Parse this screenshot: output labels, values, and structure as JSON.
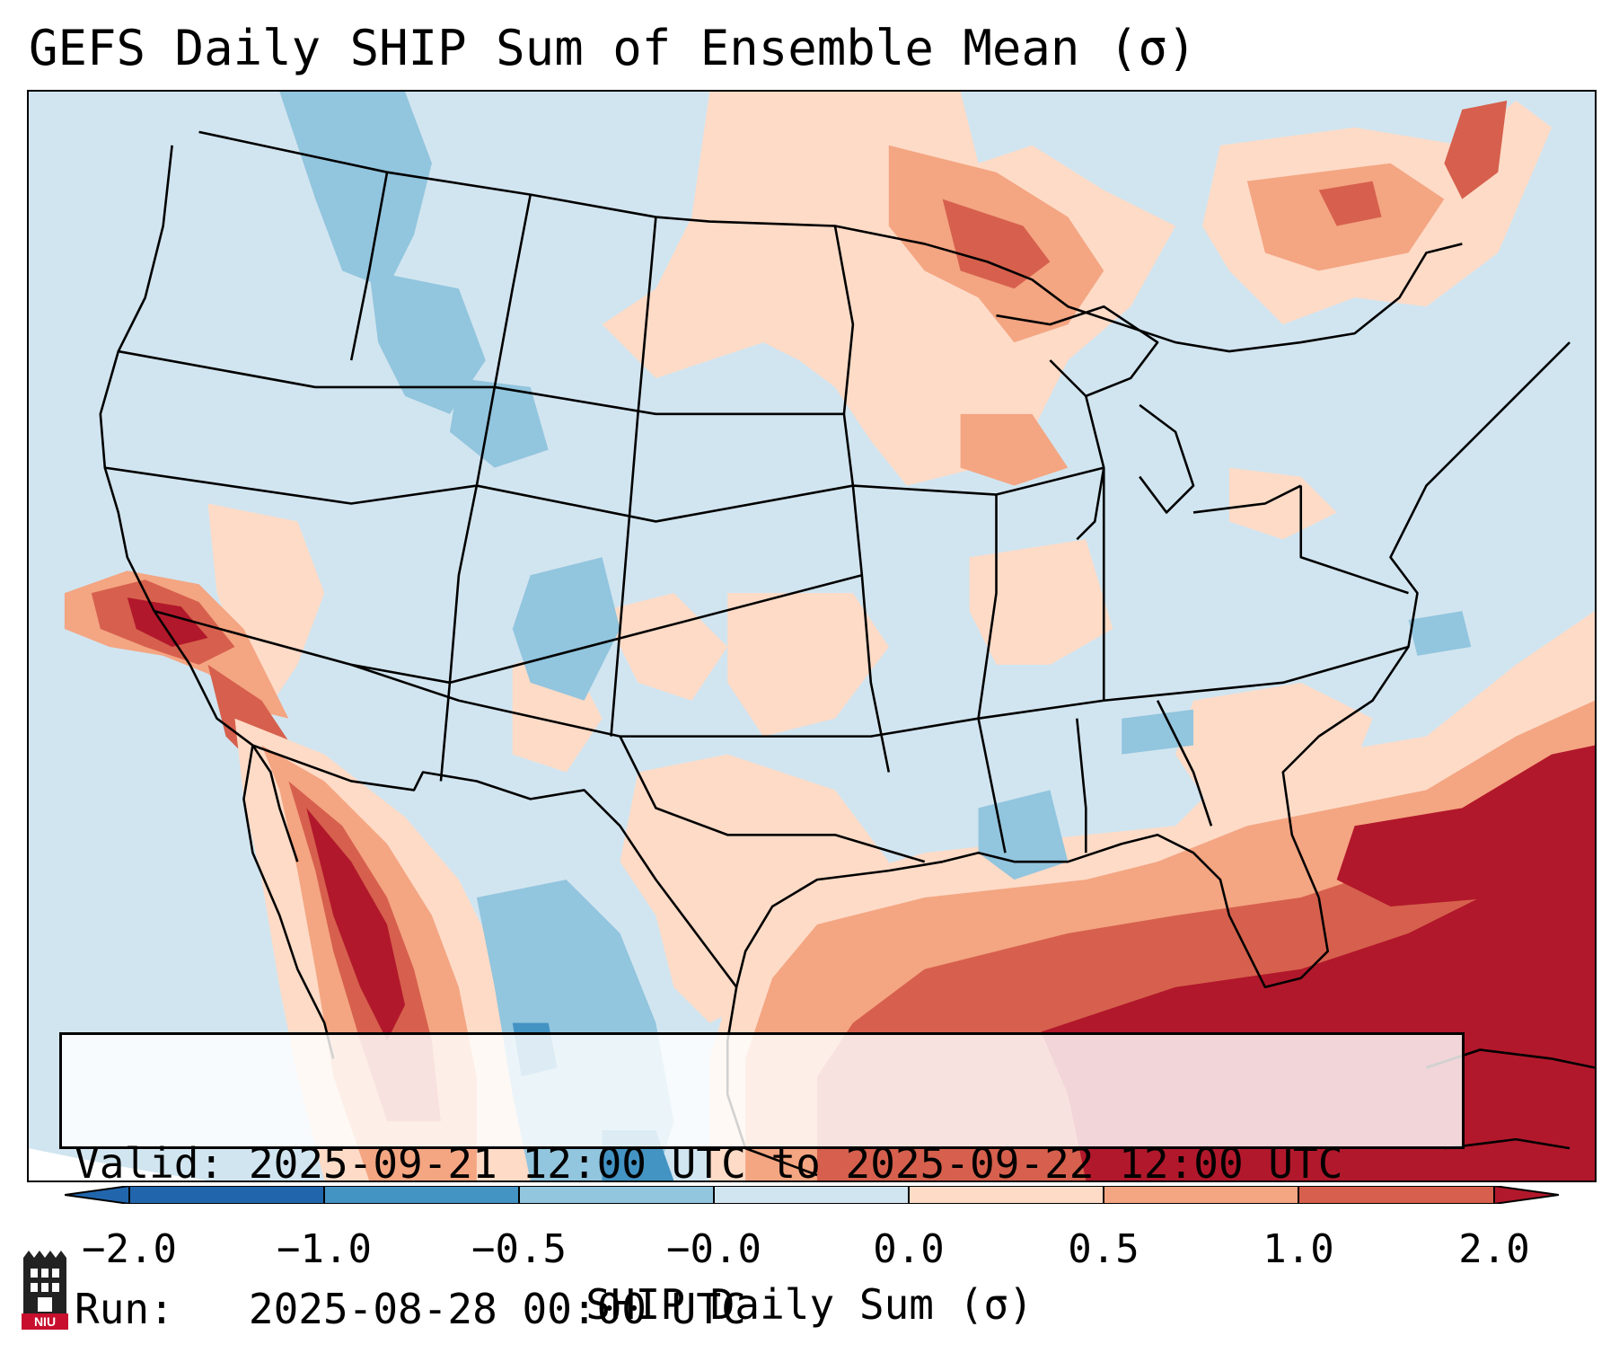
{
  "title": "GEFS Daily SHIP Sum of Ensemble Mean (σ)",
  "info": {
    "valid_label": "Valid:",
    "valid_value": "2025-09-21 12:00 UTC to 2025-09-22 12:00 UTC",
    "run_label": "Run:",
    "run_value": "2025-08-28 00:00 UTC"
  },
  "colorbar": {
    "label": "SHIP Daily Sum (σ)",
    "ticks": [
      "−2.0",
      "−1.0",
      "−0.5",
      "−0.0",
      "0.0",
      "0.5",
      "1.0",
      "2.0"
    ],
    "colors": [
      "#2166ac",
      "#4393c3",
      "#92c5de",
      "#d1e5f0",
      "#fddbc7",
      "#f4a582",
      "#d6604d",
      "#b2182b"
    ]
  },
  "logo": {
    "text": "NIU"
  },
  "map": {
    "region": "Contiguous United States",
    "colors": {
      "background": "#d1e5f0",
      "state_lines": "#000000"
    }
  }
}
